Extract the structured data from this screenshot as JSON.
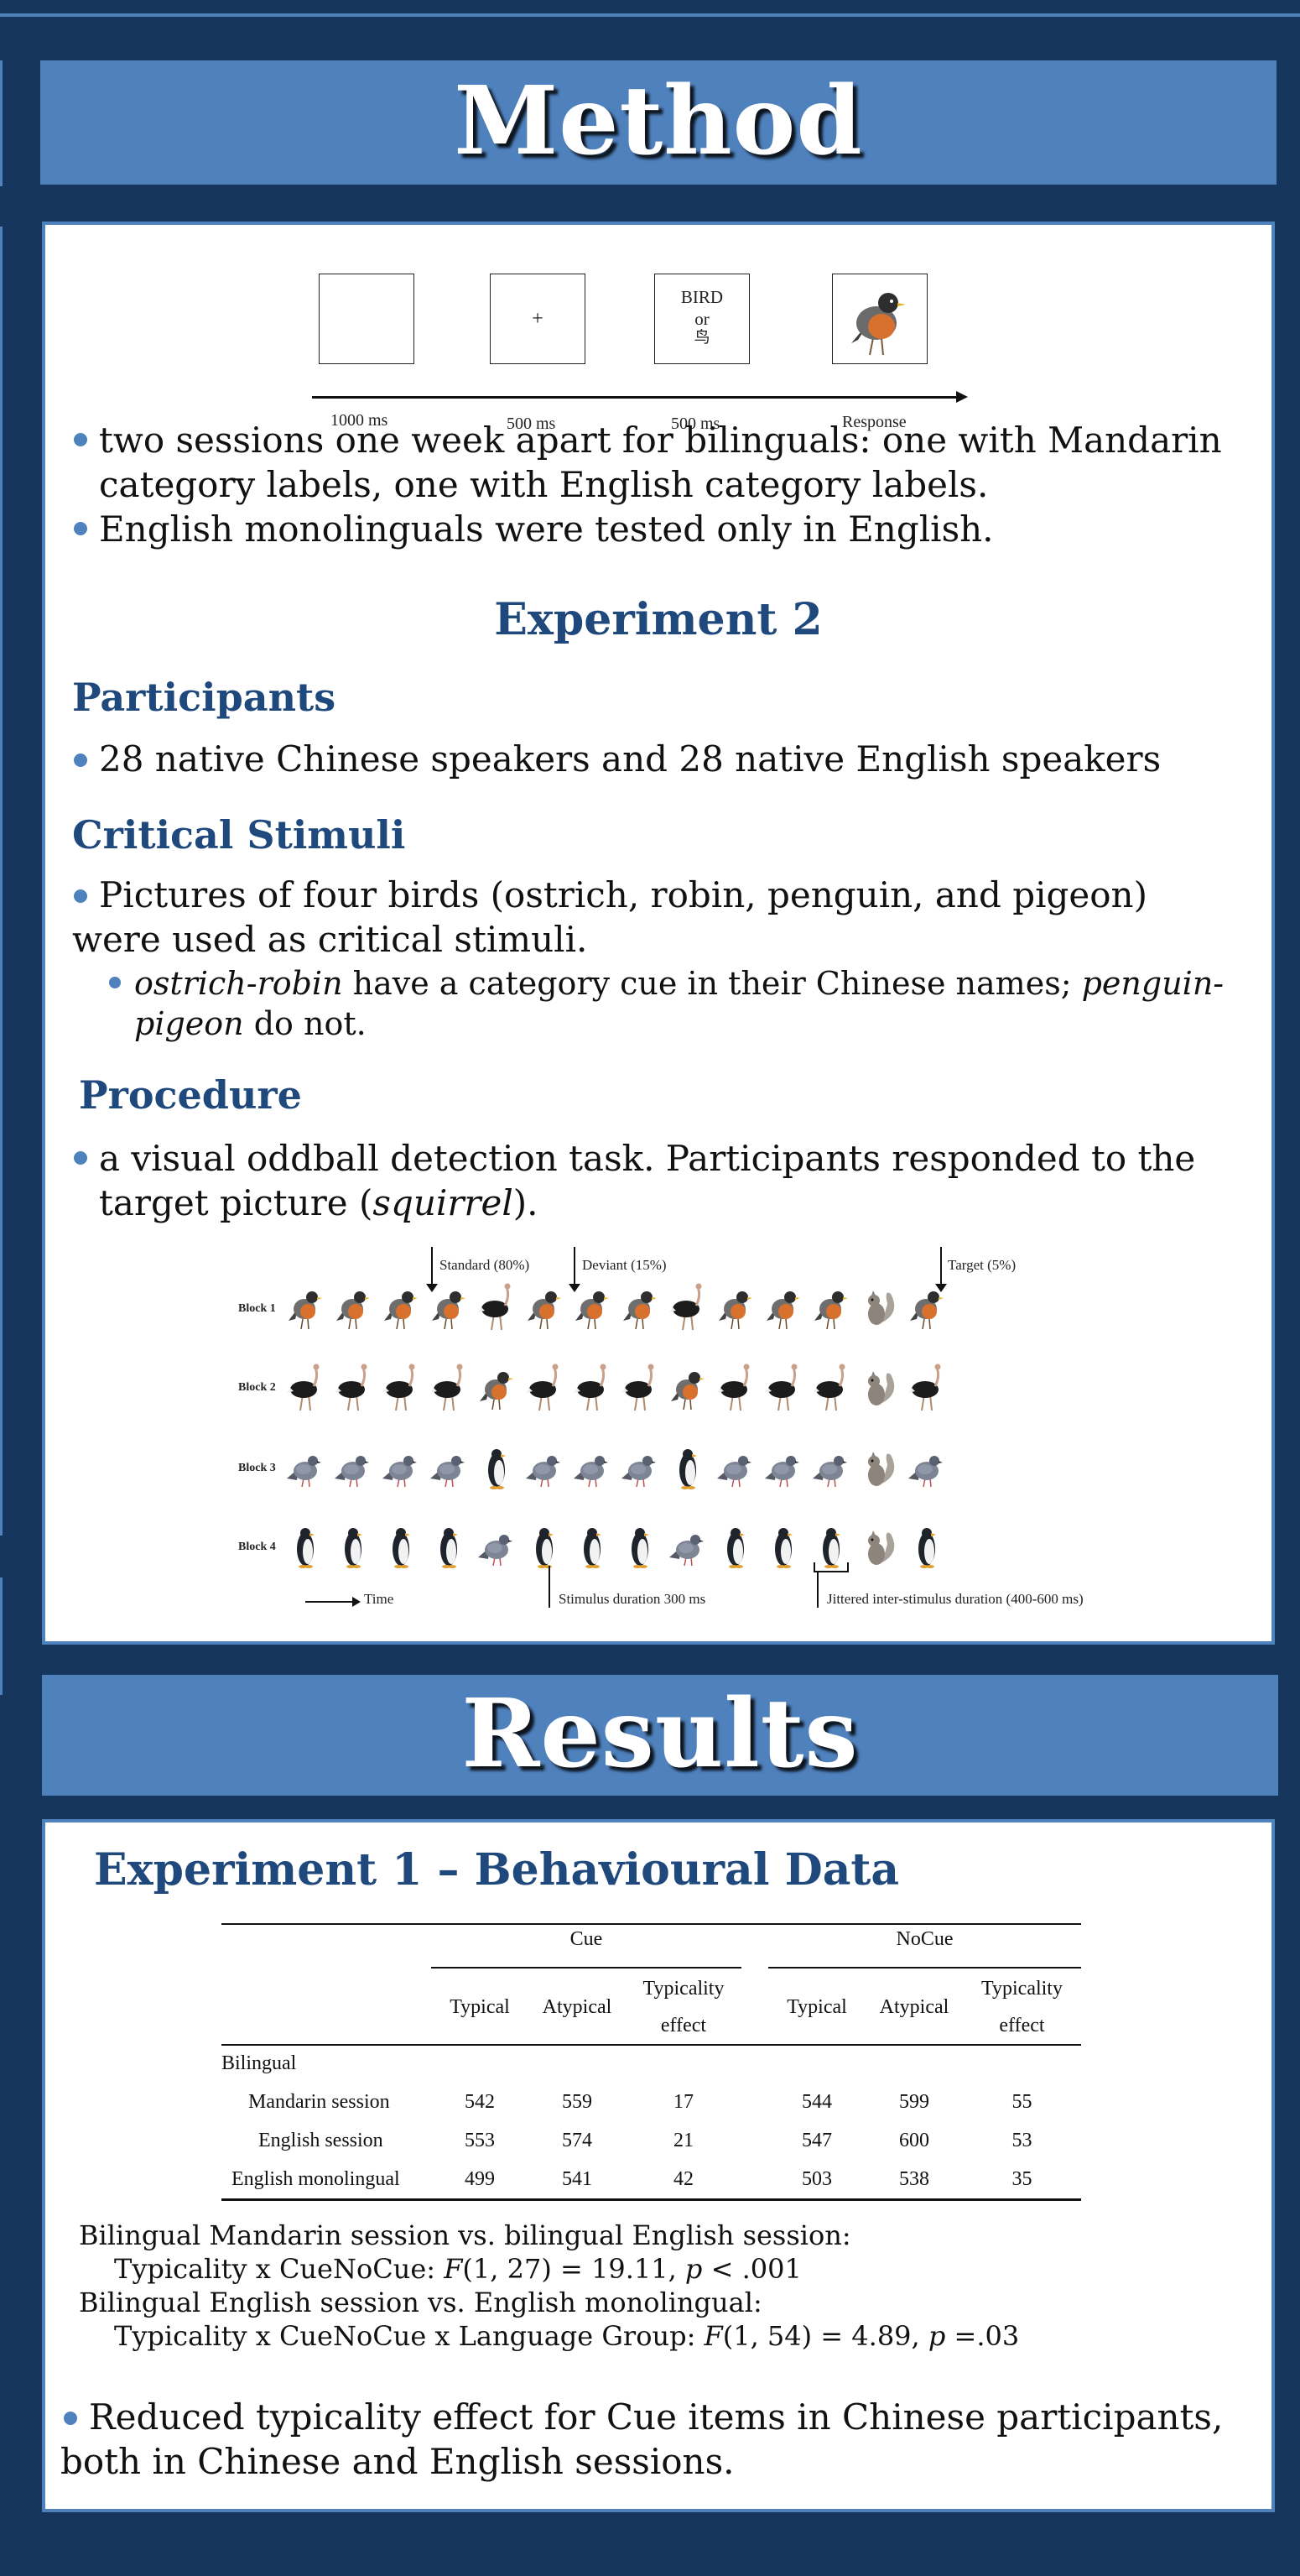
{
  "method": {
    "title": "Method",
    "timeline": {
      "fixation": "+",
      "word_line1": "BIRD",
      "word_line2": "or",
      "word_line3": "鸟",
      "labels": [
        "1000 ms",
        "500 ms",
        "500 ms",
        "Response"
      ]
    },
    "bullets": [
      "two sessions one week apart for bilinguals: one with Mandarin category labels, one with English category labels.",
      "English monolinguals were tested only in English."
    ],
    "exp2": {
      "heading": "Experiment 2",
      "participants_heading": "Participants",
      "participants_text": "28 native Chinese speakers and 28 native English speakers",
      "stimuli_heading": "Critical Stimuli",
      "stimuli_text": "Pictures of four birds (ostrich, robin, penguin, and pigeon) were used as critical stimuli.",
      "stimuli_sub_italic1": "ostrich-robin",
      "stimuli_sub_text1": " have a category cue in their Chinese names; ",
      "stimuli_sub_italic2": "penguin-pigeon",
      "stimuli_sub_text2": " do not.",
      "procedure_heading": "Procedure",
      "procedure_text1": "a visual oddball detection task. Participants responded to the target picture (",
      "procedure_italic": "squirrel",
      "procedure_text2": ")."
    },
    "oddball": {
      "standard": "Standard (80%)",
      "deviant": "Deviant (15%)",
      "target": "Target (5%)",
      "blocks": [
        "Block 1",
        "Block 2",
        "Block 3",
        "Block 4"
      ],
      "time": "Time",
      "stim_duration": "Stimulus duration 300 ms",
      "isi": "Jittered inter-stimulus duration (400-600 ms)",
      "sequences": [
        [
          "robin",
          "robin",
          "robin",
          "robin",
          "ostrich",
          "robin",
          "robin",
          "robin",
          "ostrich",
          "robin",
          "robin",
          "robin",
          "squirrel",
          "robin"
        ],
        [
          "ostrich",
          "ostrich",
          "ostrich",
          "ostrich",
          "robin",
          "ostrich",
          "ostrich",
          "ostrich",
          "robin",
          "ostrich",
          "ostrich",
          "ostrich",
          "squirrel",
          "ostrich"
        ],
        [
          "pigeon",
          "pigeon",
          "pigeon",
          "pigeon",
          "penguin",
          "pigeon",
          "pigeon",
          "pigeon",
          "penguin",
          "pigeon",
          "pigeon",
          "pigeon",
          "squirrel",
          "pigeon"
        ],
        [
          "penguin",
          "penguin",
          "penguin",
          "penguin",
          "pigeon",
          "penguin",
          "penguin",
          "penguin",
          "pigeon",
          "penguin",
          "penguin",
          "penguin",
          "squirrel",
          "penguin"
        ]
      ]
    }
  },
  "results": {
    "title": "Results",
    "exp1_heading": "Experiment 1 – Behavioural Data",
    "table": {
      "group_cue": "Cue",
      "group_nocue": "NoCue",
      "col_typical": "Typical",
      "col_atypical": "Atypical",
      "col_effect_l1": "Typicality",
      "col_effect_l2": "effect",
      "section": "Bilingual",
      "rows": [
        {
          "label": "Mandarin session",
          "values": [
            "542",
            "559",
            "17",
            "544",
            "599",
            "55"
          ]
        },
        {
          "label": "English session",
          "values": [
            "553",
            "574",
            "21",
            "547",
            "600",
            "53"
          ]
        },
        {
          "label": "English monolingual",
          "values": [
            "499",
            "541",
            "42",
            "503",
            "538",
            "35"
          ]
        }
      ]
    },
    "stat1_line1": "Bilingual Mandarin session vs. bilingual English session:",
    "stat1_pre": "Typicality x CueNoCue: ",
    "stat1_F": "F",
    "stat1_mid": "(1, 27) = 19.11, ",
    "stat1_p": "p",
    "stat1_post": " < .001",
    "stat2_line1": "Bilingual English session vs. English monolingual:",
    "stat2_pre": "Typicality x CueNoCue x Language Group: ",
    "stat2_F": "F",
    "stat2_mid": "(1, 54) = 4.89, ",
    "stat2_p": "p",
    "stat2_post": " =.03",
    "conclusion": "Reduced typicality effect for Cue items in Chinese participants, both in Chinese and English sessions."
  }
}
